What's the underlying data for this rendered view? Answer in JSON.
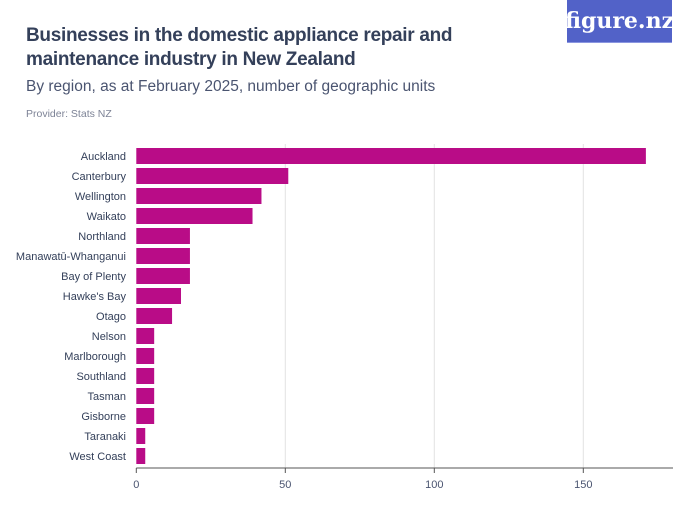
{
  "header": {
    "title": "Businesses in the domestic appliance repair and maintenance industry in New Zealand",
    "subtitle": "By region, as at February 2025, number of geographic units",
    "provider": "Provider: Stats NZ",
    "logo": "figure.nz"
  },
  "chart_data": {
    "type": "bar",
    "orientation": "horizontal",
    "categories": [
      "Auckland",
      "Canterbury",
      "Wellington",
      "Waikato",
      "Northland",
      "Manawatū-Whanganui",
      "Bay of Plenty",
      "Hawke's Bay",
      "Otago",
      "Nelson",
      "Marlborough",
      "Southland",
      "Tasman",
      "Gisborne",
      "Taranaki",
      "West Coast"
    ],
    "values": [
      171,
      51,
      42,
      39,
      18,
      18,
      18,
      15,
      12,
      6,
      6,
      6,
      6,
      6,
      3,
      3
    ],
    "xlim": [
      0,
      180
    ],
    "xticks": [
      0,
      50,
      100,
      150
    ],
    "grid": true,
    "color": "#b90c87"
  }
}
